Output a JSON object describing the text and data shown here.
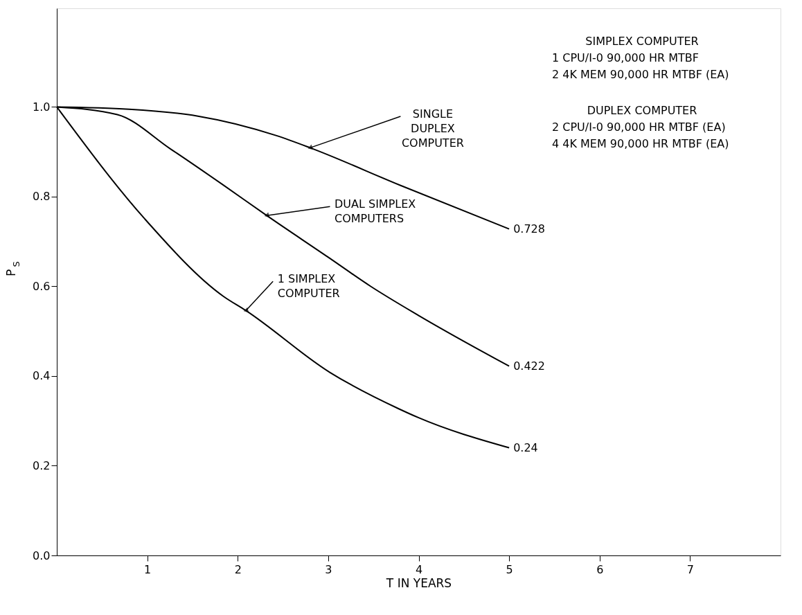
{
  "chart_data": {
    "type": "line",
    "xlabel": "T IN YEARS",
    "ylabel": "P$_{S}$",
    "xlim": [
      0,
      8
    ],
    "ylim": [
      0,
      1.22
    ],
    "xticks": [
      1,
      2,
      3,
      4,
      5,
      6,
      7
    ],
    "yticks": [
      {
        "value": 0,
        "label": "0.0"
      },
      0.2,
      0.4,
      0.6,
      0.8,
      {
        "value": 1,
        "label": "1.0"
      }
    ],
    "grid": false,
    "legend": false,
    "marker": "none",
    "line_style": "solid",
    "series": [
      {
        "color": "#000000",
        "x": [
          0,
          0.8,
          1.55,
          2.43,
          2.8,
          3.8,
          5
        ],
        "values": [
          1.0,
          0.995,
          0.98,
          0.936,
          0.909,
          0.825,
          0.728
        ],
        "value_labels": [
          null,
          null,
          null,
          null,
          null,
          null,
          "0.728"
        ]
      },
      {
        "color": "#000000",
        "x": [
          0,
          0.67,
          1.26,
          1.84,
          2.32,
          3.0,
          3.47,
          4.0,
          5
        ],
        "values": [
          1.0,
          0.983,
          0.906,
          0.826,
          0.758,
          0.665,
          0.6,
          0.535,
          0.422
        ],
        "value_labels": [
          null,
          null,
          null,
          null,
          null,
          null,
          null,
          null,
          "0.422"
        ]
      },
      {
        "color": "#000000",
        "x": [
          0,
          0.97,
          1.84,
          2.09,
          3.02,
          3.78,
          4.0,
          5
        ],
        "values": [
          1.0,
          0.751,
          0.578,
          0.546,
          0.408,
          0.327,
          0.307,
          0.24
        ],
        "value_labels": [
          null,
          null,
          null,
          null,
          null,
          null,
          null,
          "0.24"
        ]
      }
    ],
    "annotations": [
      {
        "text": "SINGLE\nDUPLEX\nCOMPUTER",
        "x": 2.8,
        "y": 0.909
      },
      {
        "text": "DUAL SIMPLEX\nCOMPUTERS",
        "x": 2.32,
        "y": 0.758
      },
      {
        "text": "1 SIMPLEX\nCOMPUTER",
        "x": 2.09,
        "y": 0.546
      },
      "SIMPLEX COMPUTER\n1 CPU/I-0  90,000 HR MTBF\n2 4K MEM   90,000 HR MTBF (EA)",
      "DUPLEX COMPUTER\n2 CPU/I-0  90,000 HR MTBF (EA)\n4 4K MEM   90,000 HR MTBF (EA)"
    ]
  }
}
